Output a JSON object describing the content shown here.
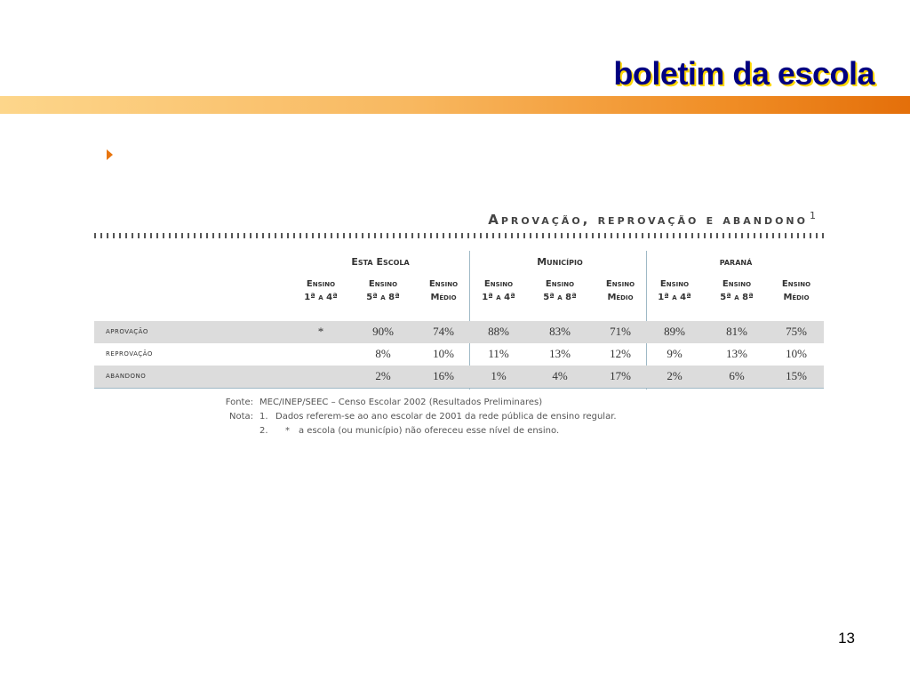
{
  "slide": {
    "title": "boletim da escola",
    "page_number": "13"
  },
  "table": {
    "heading": "Aprovação, reprovação e abandono",
    "heading_sup": "1",
    "groups": [
      {
        "label": "Esta Escola"
      },
      {
        "label": "Município"
      },
      {
        "label": "paraná"
      }
    ],
    "columns": [
      {
        "line1": "Ensino",
        "line2": "1ª a 4ª"
      },
      {
        "line1": "Ensino",
        "line2": "5ª a 8ª"
      },
      {
        "line1": "Ensino",
        "line2": "Médio"
      },
      {
        "line1": "Ensino",
        "line2": "1ª a 4ª"
      },
      {
        "line1": "Ensino",
        "line2": "5ª a 8ª"
      },
      {
        "line1": "Ensino",
        "line2": "Médio"
      },
      {
        "line1": "Ensino",
        "line2": "1ª a 4ª"
      },
      {
        "line1": "Ensino",
        "line2": "5ª a 8ª"
      },
      {
        "line1": "Ensino",
        "line2": "Médio"
      }
    ],
    "rows": [
      {
        "label": "aprovação",
        "cells": [
          "*",
          "90%",
          "74%",
          "88%",
          "83%",
          "71%",
          "89%",
          "81%",
          "75%"
        ]
      },
      {
        "label": "reprovação",
        "cells": [
          "",
          "8%",
          "10%",
          "11%",
          "13%",
          "12%",
          "9%",
          "13%",
          "10%"
        ]
      },
      {
        "label": "abandono",
        "cells": [
          "",
          "2%",
          "16%",
          "1%",
          "4%",
          "17%",
          "2%",
          "6%",
          "15%"
        ]
      }
    ]
  },
  "notes": {
    "fonte_label": "Fonte:",
    "fonte_text": "MEC/INEP/SEEC – Censo Escolar 2002 (Resultados Preliminares)",
    "nota_label": "Nota:",
    "nota1_num": "1.",
    "nota1_text": "Dados referem-se ao ano escolar de 2001 da rede pública de ensino regular.",
    "nota2_num": "2.",
    "nota2_star": "*",
    "nota2_text": "a escola (ou município) não ofereceu esse nível de ensino."
  },
  "colors": {
    "title": "#000080",
    "title_shadow": "#ffd800",
    "band_start": "#fdd68b",
    "band_end": "#e46f0a",
    "bullet": "#e8750e",
    "row_shade": "#dcdcdc"
  }
}
